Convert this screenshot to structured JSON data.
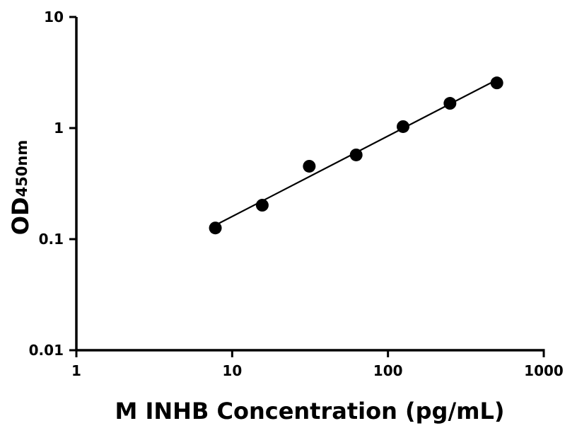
{
  "chart_data": {
    "type": "scatter",
    "title": "",
    "xlabel": "M INHB Concentration (pg/mL)",
    "ylabel_main": "OD",
    "ylabel_sub": "450nm",
    "x_scale": "log",
    "y_scale": "log",
    "xlim": [
      1,
      1000
    ],
    "ylim": [
      0.01,
      10
    ],
    "x_ticks": [
      "1",
      "10",
      "100",
      "1000"
    ],
    "y_ticks": [
      "0.01",
      "0.1",
      "1",
      "10"
    ],
    "grid": false,
    "fit_line": "linear fit on log-log axes",
    "points": [
      {
        "x": 7.8,
        "y": 0.126
      },
      {
        "x": 15.6,
        "y": 0.202
      },
      {
        "x": 31.25,
        "y": 0.453
      },
      {
        "x": 62.5,
        "y": 0.573
      },
      {
        "x": 125,
        "y": 1.03
      },
      {
        "x": 250,
        "y": 1.67
      },
      {
        "x": 500,
        "y": 2.55
      }
    ],
    "marker_color": "#000000",
    "line_color": "#000000"
  }
}
